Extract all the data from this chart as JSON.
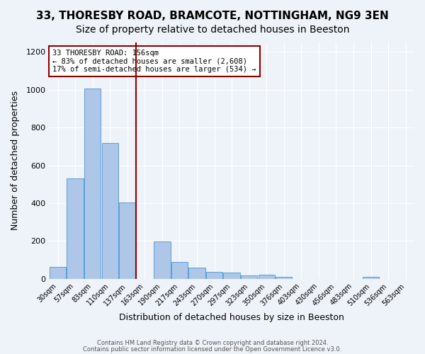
{
  "title1": "33, THORESBY ROAD, BRAMCOTE, NOTTINGHAM, NG9 3EN",
  "title2": "Size of property relative to detached houses in Beeston",
  "xlabel": "Distribution of detached houses by size in Beeston",
  "ylabel": "Number of detached properties",
  "footer1": "Contains HM Land Registry data © Crown copyright and database right 2024.",
  "footer2": "Contains public sector information licensed under the Open Government Licence v3.0.",
  "bar_labels": [
    "30sqm",
    "57sqm",
    "83sqm",
    "110sqm",
    "137sqm",
    "163sqm",
    "190sqm",
    "217sqm",
    "243sqm",
    "270sqm",
    "297sqm",
    "323sqm",
    "350sqm",
    "376sqm",
    "403sqm",
    "430sqm",
    "456sqm",
    "483sqm",
    "510sqm",
    "536sqm",
    "563sqm"
  ],
  "bar_values": [
    65,
    530,
    1005,
    720,
    405,
    0,
    197,
    88,
    58,
    37,
    32,
    20,
    22,
    12,
    0,
    0,
    0,
    0,
    12,
    0,
    0
  ],
  "bar_color": "#aec6e8",
  "bar_edge_color": "#5a9fd4",
  "vline_x_index": 4.5,
  "vline_color": "#8b0000",
  "annotation_line1": "33 THORESBY ROAD: 156sqm",
  "annotation_line2": "← 83% of detached houses are smaller (2,608)",
  "annotation_line3": "17% of semi-detached houses are larger (534) →",
  "annotation_box_color": "white",
  "annotation_box_edge": "#8b0000",
  "ylim": [
    0,
    1250
  ],
  "yticks": [
    0,
    200,
    400,
    600,
    800,
    1000,
    1200
  ],
  "bg_color": "#eef3f9",
  "grid_color": "white",
  "title1_fontsize": 11,
  "title2_fontsize": 10,
  "xlabel_fontsize": 9,
  "ylabel_fontsize": 9
}
